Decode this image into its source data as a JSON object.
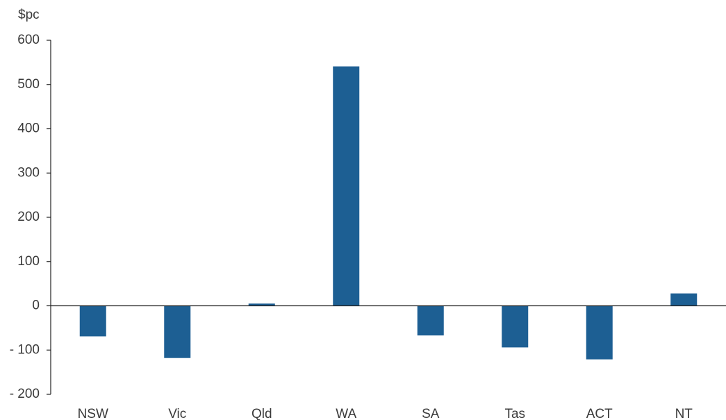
{
  "chart_data": {
    "type": "bar",
    "y_label": "$pc",
    "categories": [
      "NSW",
      "Vic",
      "Qld",
      "WA",
      "SA",
      "Tas",
      "ACT",
      "NT"
    ],
    "values": [
      -69,
      -118,
      5,
      541,
      -67,
      -94,
      -121,
      28
    ],
    "color": "#1d5f93",
    "ylim": [
      -200,
      600
    ],
    "yticks": [
      {
        "value": -200,
        "label": "- 200"
      },
      {
        "value": -100,
        "label": "- 100"
      },
      0,
      100,
      200,
      300,
      400,
      500,
      600
    ],
    "grid": false
  }
}
